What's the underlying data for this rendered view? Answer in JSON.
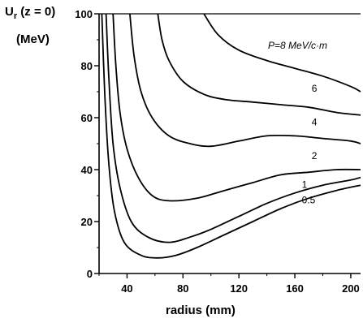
{
  "chart_data": {
    "type": "line",
    "ylabel_main": "U",
    "ylabel_sub": "r",
    "ylabel_cond": " (z = 0)",
    "ylabel_unit": "(MeV)",
    "xlabel": "radius (mm)",
    "annotation": "P=8 MeV/c·m",
    "xlim": [
      20,
      207
    ],
    "ylim": [
      0,
      100
    ],
    "x_ticks": [
      {
        "value": 40,
        "label": "40"
      },
      {
        "value": 80,
        "label": "80"
      },
      {
        "value": 120,
        "label": "120"
      },
      {
        "value": 160,
        "label": "160"
      },
      {
        "value": 200,
        "label": "200"
      }
    ],
    "y_ticks": [
      {
        "value": 0,
        "label": "0"
      },
      {
        "value": 20,
        "label": "20"
      },
      {
        "value": 40,
        "label": "40"
      },
      {
        "value": 60,
        "label": "60"
      },
      {
        "value": 80,
        "label": "80"
      },
      {
        "value": 100,
        "label": "100"
      }
    ],
    "grid": false,
    "series": [
      {
        "name": "8",
        "points": [
          [
            95,
            100
          ],
          [
            105,
            92
          ],
          [
            120,
            86
          ],
          [
            140,
            82
          ],
          [
            160,
            79
          ],
          [
            180,
            76
          ],
          [
            200,
            72
          ],
          [
            207,
            70
          ]
        ]
      },
      {
        "name": "6",
        "points": [
          [
            62,
            100
          ],
          [
            65,
            90
          ],
          [
            70,
            82
          ],
          [
            80,
            74
          ],
          [
            95,
            69
          ],
          [
            110,
            67
          ],
          [
            130,
            66
          ],
          [
            150,
            65
          ],
          [
            170,
            64
          ],
          [
            190,
            62
          ],
          [
            207,
            61
          ]
        ]
      },
      {
        "name": "4",
        "points": [
          [
            42,
            100
          ],
          [
            45,
            84
          ],
          [
            50,
            70
          ],
          [
            58,
            60
          ],
          [
            70,
            53
          ],
          [
            85,
            50
          ],
          [
            100,
            49
          ],
          [
            120,
            51
          ],
          [
            140,
            53
          ],
          [
            160,
            53
          ],
          [
            180,
            52
          ],
          [
            200,
            51
          ],
          [
            207,
            50
          ]
        ]
      },
      {
        "name": "2",
        "points": [
          [
            30,
            100
          ],
          [
            32,
            80
          ],
          [
            35,
            62
          ],
          [
            40,
            48
          ],
          [
            48,
            37
          ],
          [
            58,
            30
          ],
          [
            70,
            28
          ],
          [
            90,
            29
          ],
          [
            110,
            32
          ],
          [
            130,
            35
          ],
          [
            150,
            38
          ],
          [
            170,
            39
          ],
          [
            190,
            40
          ],
          [
            207,
            40
          ]
        ]
      },
      {
        "name": "1",
        "points": [
          [
            25,
            100
          ],
          [
            27,
            75
          ],
          [
            30,
            50
          ],
          [
            35,
            33
          ],
          [
            43,
            20
          ],
          [
            55,
            14
          ],
          [
            70,
            12
          ],
          [
            85,
            14
          ],
          [
            100,
            17
          ],
          [
            120,
            22
          ],
          [
            140,
            27
          ],
          [
            160,
            31
          ],
          [
            180,
            34
          ],
          [
            200,
            36
          ],
          [
            207,
            37
          ]
        ]
      },
      {
        "name": "0.5",
        "points": [
          [
            22,
            100
          ],
          [
            24,
            70
          ],
          [
            27,
            42
          ],
          [
            31,
            24
          ],
          [
            38,
            12
          ],
          [
            50,
            7
          ],
          [
            62,
            6
          ],
          [
            75,
            7
          ],
          [
            90,
            10
          ],
          [
            110,
            15
          ],
          [
            130,
            20
          ],
          [
            150,
            25
          ],
          [
            170,
            29
          ],
          [
            190,
            32
          ],
          [
            207,
            34
          ]
        ]
      }
    ],
    "curve_label_positions": [
      {
        "name": "8",
        "x": 180,
        "y": 85
      },
      {
        "name": "6",
        "x": 172,
        "y": 70
      },
      {
        "name": "4",
        "x": 172,
        "y": 57
      },
      {
        "name": "2",
        "x": 172,
        "y": 44
      },
      {
        "name": "1",
        "x": 165,
        "y": 33
      },
      {
        "name": "0.5",
        "x": 165,
        "y": 27
      }
    ]
  }
}
